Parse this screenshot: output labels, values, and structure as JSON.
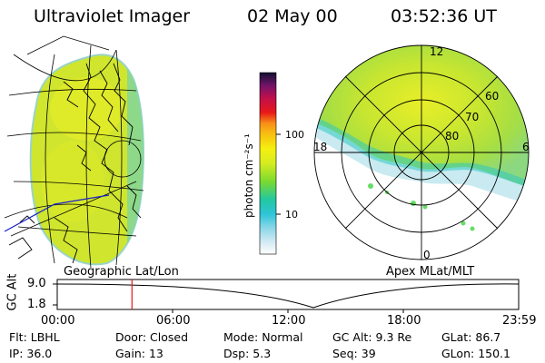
{
  "header": {
    "instrument": "Ultraviolet Imager",
    "date": "02 May 00",
    "time": "03:52:36 UT"
  },
  "colorbar": {
    "unit_label": "photon cm⁻²s⁻¹",
    "ticks": [
      "100",
      "10"
    ]
  },
  "polar": {
    "mlt_labels": {
      "top": "12",
      "left": "18",
      "right": "6",
      "bottom": "0"
    },
    "lat_labels": [
      "60",
      "70",
      "80"
    ]
  },
  "labels": {
    "geo": "Geographic Lat/Lon",
    "apex": "Apex MLat/MLT"
  },
  "altplot": {
    "axis_title": "GC Alt",
    "y_top": "9.0",
    "y_bottom": "1.8",
    "x_ticks": [
      "00:00",
      "06:00",
      "12:00",
      "18:00",
      "23:59"
    ],
    "current_time_fraction": 0.162
  },
  "footer": {
    "row1": [
      {
        "label": "Flt:",
        "value": "LBHL"
      },
      {
        "label": "Door:",
        "value": "Closed"
      },
      {
        "label": "Mode:",
        "value": "Normal"
      },
      {
        "label": "GC Alt:",
        "value": "9.3 Re"
      },
      {
        "label": "GLat:",
        "value": "86.7"
      }
    ],
    "row2": [
      {
        "label": "IP:",
        "value": "36.0"
      },
      {
        "label": "Gain:",
        "value": "13"
      },
      {
        "label": "Dsp:",
        "value": "5.3"
      },
      {
        "label": "Seq:",
        "value": "39"
      },
      {
        "label": "GLon:",
        "value": "150.1"
      }
    ]
  }
}
